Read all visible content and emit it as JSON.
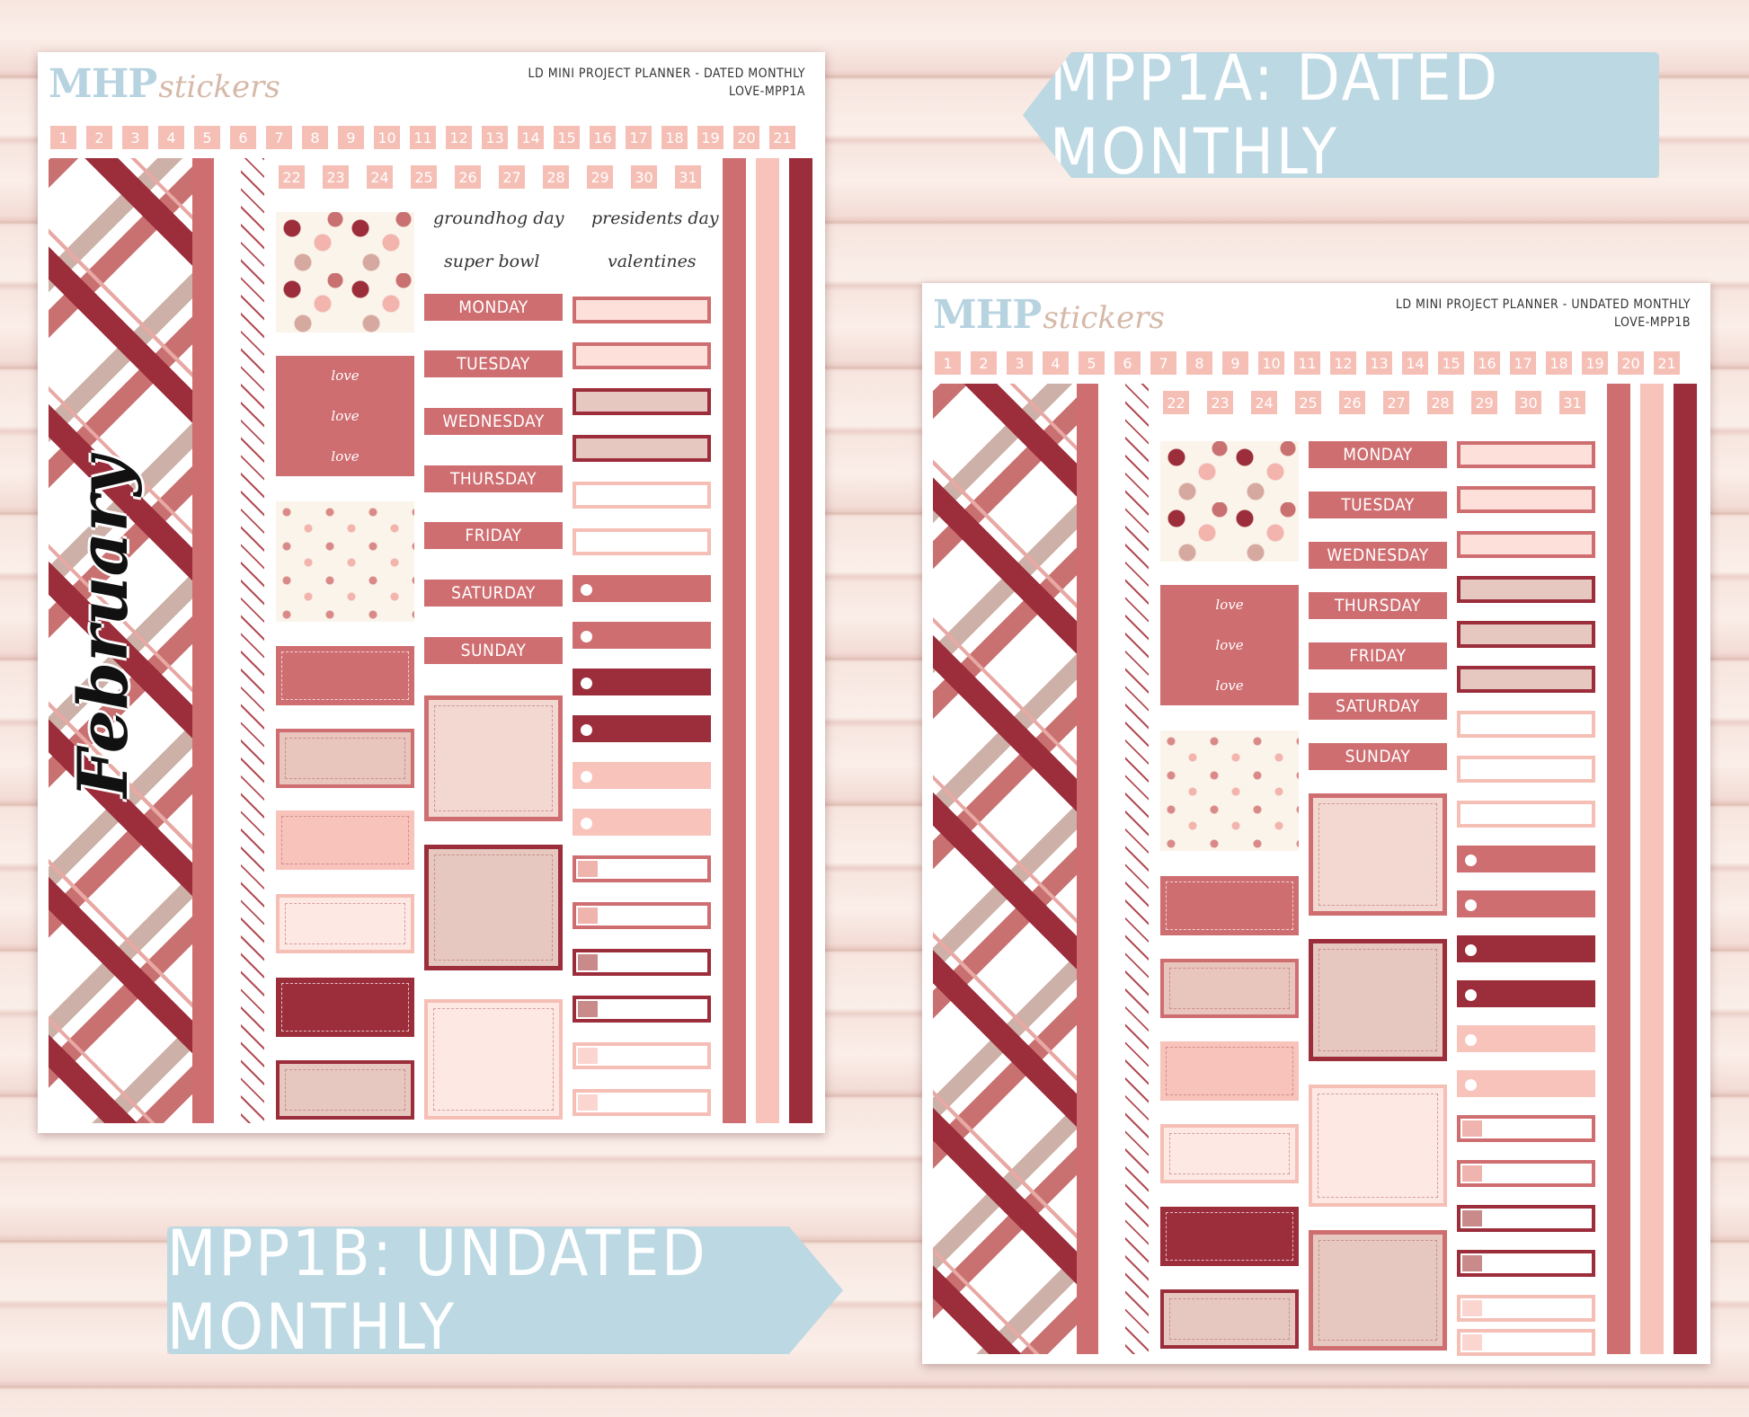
{
  "banners": {
    "a": "MPP1A: DATED MONTHLY",
    "b": "MPP1B: UNDATED MONTHLY"
  },
  "brand": {
    "mhp": "MHP",
    "stickers": "stickers"
  },
  "sheet_a": {
    "title": "LD MINI PROJECT PLANNER - DATED MONTHLY",
    "code": "LOVE-MPP1A",
    "month": "February",
    "numbers_row1": [
      "1",
      "2",
      "3",
      "4",
      "5",
      "6",
      "7",
      "8",
      "9",
      "10",
      "11",
      "12",
      "13",
      "14",
      "15",
      "16",
      "17",
      "18",
      "19",
      "20",
      "21"
    ],
    "numbers_row2": [
      "22",
      "23",
      "24",
      "25",
      "26",
      "27",
      "28",
      "29",
      "30",
      "31"
    ],
    "holidays": [
      "groundhog day",
      "presidents day",
      "super bowl",
      "valentines"
    ],
    "days": [
      "MONDAY",
      "TUESDAY",
      "WEDNESDAY",
      "THURSDAY",
      "FRIDAY",
      "SATURDAY",
      "SUNDAY"
    ],
    "love_text": "love"
  },
  "sheet_b": {
    "title": "LD MINI PROJECT PLANNER - UNDATED MONTHLY",
    "code": "LOVE-MPP1B",
    "numbers_row1": [
      "1",
      "2",
      "3",
      "4",
      "5",
      "6",
      "7",
      "8",
      "9",
      "10",
      "11",
      "12",
      "13",
      "14",
      "15",
      "16",
      "17",
      "18",
      "19",
      "20",
      "21"
    ],
    "numbers_row2": [
      "22",
      "23",
      "24",
      "25",
      "26",
      "27",
      "28",
      "29",
      "30",
      "31"
    ],
    "days": [
      "MONDAY",
      "TUESDAY",
      "WEDNESDAY",
      "THURSDAY",
      "FRIDAY",
      "SATURDAY",
      "SUNDAY"
    ],
    "love_text": "love"
  },
  "colors": {
    "burgundy": "#9c2d3b",
    "rose": "#cf6e71",
    "blush": "#f5bfb6",
    "pale_pink": "#fce4e0",
    "taupe": "#e6c8c0",
    "banner_blue": "#bcd8e3",
    "logo_blue": "#b7d3e0"
  }
}
